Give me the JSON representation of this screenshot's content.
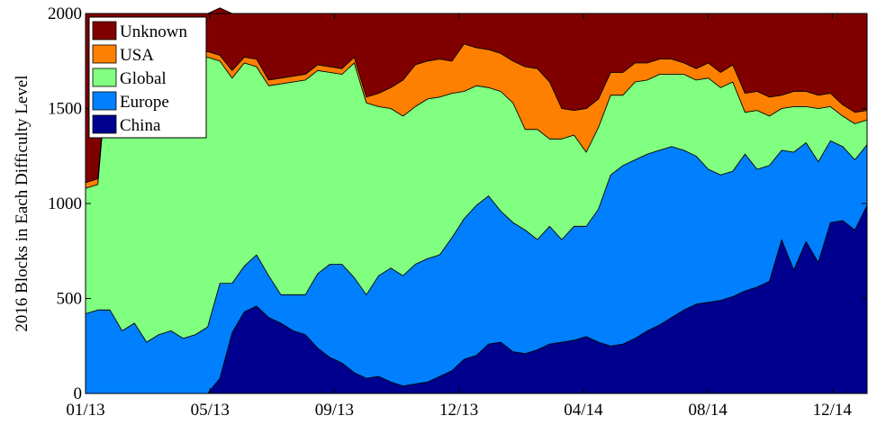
{
  "chart_data": {
    "type": "area",
    "stacked": true,
    "title": "",
    "xlabel": "",
    "ylabel": "2016 Blocks in Each Difficulty Level",
    "ylim": [
      0,
      2000
    ],
    "yticks": [
      0,
      500,
      1000,
      1500,
      2000
    ],
    "xticks": [
      "01/13",
      "05/13",
      "09/13",
      "12/13",
      "04/14",
      "08/14",
      "12/14"
    ],
    "legend_position": "top-left",
    "grid": false,
    "series": [
      {
        "name": "China",
        "color": "#00008f",
        "values": [
          0,
          0,
          0,
          0,
          0,
          0,
          0,
          0,
          0,
          0,
          0,
          80,
          320,
          430,
          460,
          400,
          370,
          330,
          310,
          240,
          190,
          160,
          110,
          80,
          90,
          60,
          40,
          50,
          60,
          90,
          120,
          180,
          200,
          260,
          270,
          220,
          210,
          230,
          260,
          270,
          280,
          300,
          270,
          250,
          260,
          290,
          330,
          360,
          400,
          440,
          470,
          480,
          490,
          510,
          540,
          560,
          590,
          810,
          650,
          800,
          690,
          900,
          910,
          860,
          990
        ]
      },
      {
        "name": "Europe",
        "color": "#0080ff",
        "values": [
          420,
          440,
          440,
          330,
          370,
          270,
          310,
          330,
          290,
          310,
          350,
          500,
          260,
          240,
          270,
          220,
          150,
          190,
          210,
          390,
          490,
          520,
          500,
          440,
          530,
          600,
          580,
          630,
          650,
          640,
          700,
          740,
          790,
          780,
          690,
          680,
          650,
          580,
          620,
          540,
          600,
          580,
          700,
          900,
          940,
          940,
          930,
          920,
          900,
          840,
          780,
          700,
          660,
          660,
          720,
          620,
          610,
          470,
          620,
          520,
          530,
          430,
          390,
          370,
          320
        ]
      },
      {
        "name": "Global",
        "color": "#80ff80",
        "values": [
          660,
          660,
          1400,
          1420,
          1420,
          1400,
          1380,
          1400,
          1440,
          1430,
          1420,
          1170,
          1080,
          1070,
          990,
          1000,
          1110,
          1120,
          1130,
          1070,
          1010,
          1000,
          1130,
          1010,
          890,
          840,
          840,
          830,
          840,
          830,
          760,
          670,
          630,
          570,
          630,
          630,
          530,
          580,
          460,
          530,
          480,
          390,
          430,
          420,
          370,
          410,
          390,
          400,
          380,
          400,
          400,
          480,
          460,
          470,
          220,
          310,
          260,
          220,
          240,
          190,
          280,
          180,
          160,
          190,
          130
        ]
      },
      {
        "name": "USA",
        "color": "#ff8000",
        "values": [
          30,
          30,
          30,
          30,
          30,
          30,
          30,
          30,
          30,
          30,
          30,
          30,
          40,
          30,
          40,
          30,
          30,
          30,
          30,
          30,
          30,
          30,
          30,
          30,
          70,
          110,
          190,
          220,
          200,
          200,
          170,
          250,
          200,
          200,
          200,
          220,
          330,
          320,
          300,
          160,
          130,
          230,
          150,
          120,
          120,
          100,
          90,
          80,
          80,
          60,
          60,
          80,
          80,
          90,
          100,
          100,
          100,
          70,
          80,
          80,
          70,
          70,
          60,
          60,
          50
        ]
      },
      {
        "name": "Unknown",
        "color": "#800000",
        "values": [
          890,
          870,
          130,
          220,
          180,
          300,
          280,
          240,
          240,
          230,
          200,
          250,
          300,
          230,
          240,
          350,
          340,
          330,
          320,
          270,
          280,
          290,
          230,
          440,
          420,
          390,
          350,
          270,
          250,
          240,
          250,
          160,
          180,
          190,
          210,
          250,
          280,
          290,
          360,
          500,
          510,
          500,
          450,
          310,
          310,
          260,
          260,
          240,
          240,
          260,
          290,
          260,
          310,
          270,
          420,
          410,
          440,
          430,
          410,
          410,
          430,
          420,
          480,
          520,
          510
        ]
      }
    ]
  }
}
